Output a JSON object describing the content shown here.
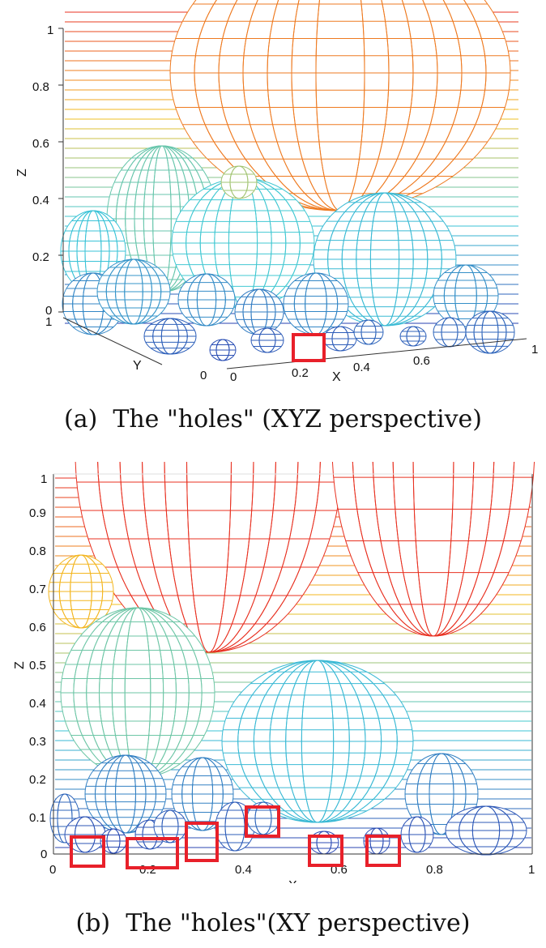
{
  "panel_a": {
    "caption": "(a)  The \"holes\" (XYZ perspective)",
    "z_label": "Z",
    "y_label": "Y",
    "x_label": "X",
    "z_ticks": [
      "1",
      "0.8",
      "0.6",
      "0.4",
      "0.2",
      "0"
    ],
    "y_ticks": [
      "1",
      "0"
    ],
    "x_ticks": [
      "0",
      "0.2",
      "0.4",
      "0.6",
      "1"
    ],
    "highlight_count": 1
  },
  "panel_b": {
    "caption": "(b)  The \"holes\"(XY perspective)",
    "z_label": "Z",
    "x_label": "X",
    "z_ticks": [
      "1",
      "0.9",
      "0.8",
      "0.7",
      "0.6",
      "0.5",
      "0.4",
      "0.3",
      "0.2",
      "0.1",
      "0"
    ],
    "x_ticks": [
      "0",
      "0.2",
      "0.4",
      "0.6",
      "0.8",
      "1"
    ],
    "highlight_count": 6
  },
  "colors": {
    "highlight": "#e8202a",
    "low": "#2a3fb0",
    "mid": "#3cc8d8",
    "high": "#f4c020",
    "top": "#e83020"
  }
}
